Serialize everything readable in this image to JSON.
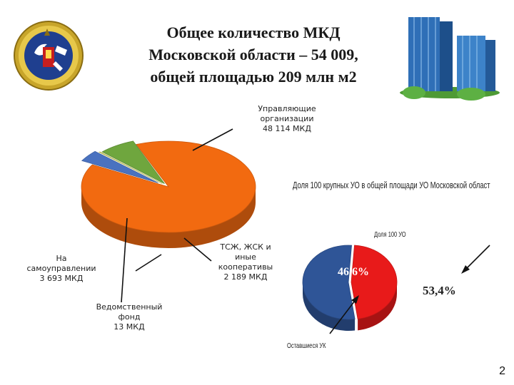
{
  "title": {
    "line1": "Общее количество МКД",
    "line2": "Московской области – 54 009,",
    "line3": "общей площадью 209 млн м2"
  },
  "page_number": "2",
  "chart_data": [
    {
      "type": "pie",
      "title": "",
      "categories": [
        "Управляющие организации",
        "ТСЖ, ЖСК и иные кооперативы",
        "Ведомственный фонд",
        "На самоуправлении"
      ],
      "values": [
        48114,
        2189,
        13,
        3693
      ],
      "units": "МКД",
      "label_text": {
        "uo_line1": "Управляющие",
        "uo_line2": "организации",
        "uo_line3": "48 114 МКД",
        "tsj_line1": "ТСЖ, ЖСК и",
        "tsj_line2": "иные",
        "tsj_line3": "кооперативы",
        "tsj_line4": "2 189 МКД",
        "ved_line1": "Ведомственный",
        "ved_line2": "фонд",
        "ved_line3": "13 МКД",
        "self_line1": "На",
        "self_line2": "самоуправлении",
        "self_line3": "3 693 МКД"
      },
      "colors": [
        "#f26a10",
        "#4a72c0",
        "#d8d860",
        "#6fa63e"
      ]
    },
    {
      "type": "pie",
      "title": "Доля 100 крупных УО в общей площади УО Московской област",
      "categories": [
        "Доля 100 УО",
        "Оставшиеся УК"
      ],
      "values": [
        46.6,
        53.4
      ],
      "labels": [
        "46,6%",
        "53,4%"
      ],
      "colors": [
        "#e81a1a",
        "#2f5597"
      ]
    }
  ],
  "colors": {
    "orange": "#f26a10",
    "green": "#6fa63e",
    "blue": "#4a72c0",
    "red": "#e81a1a",
    "darkblue": "#2f5597"
  }
}
